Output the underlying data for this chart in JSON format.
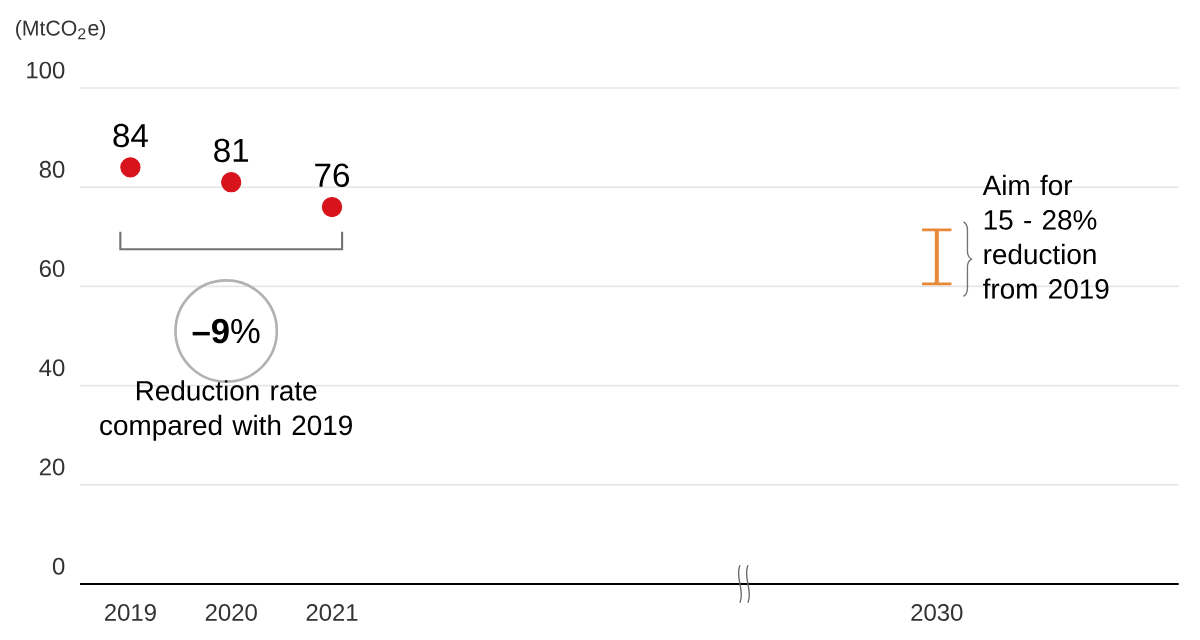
{
  "chart_data": {
    "type": "scatter",
    "ylabel": "(MtCO$_{2}$e)",
    "categories": [
      "2019",
      "2020",
      "2021",
      null,
      null,
      null,
      null,
      null,
      "2030"
    ],
    "series": [
      {
        "color": "#d7141c",
        "values": [
          84,
          81,
          76,
          null,
          null,
          null,
          null,
          null,
          null
        ],
        "value_labels": [
          "84",
          "81",
          "76",
          null,
          null,
          null,
          null,
          null,
          null
        ]
      },
      {
        "type": "bar",
        "color": "#e8893a",
        "base": [
          null,
          null,
          null,
          null,
          null,
          null,
          null,
          null,
          60.5
        ],
        "values": [
          null,
          null,
          null,
          null,
          null,
          null,
          null,
          null,
          10.9
        ]
      }
    ],
    "ylim": [
      0,
      100
    ],
    "yticks": [
      0,
      20,
      40,
      60,
      80,
      100
    ],
    "grid": "y",
    "marker": "circle",
    "annotations": [
      "**–9**%",
      "Reduction rate compared with 2019",
      "Aim for 15 - 28% reduction from 2019"
    ]
  }
}
